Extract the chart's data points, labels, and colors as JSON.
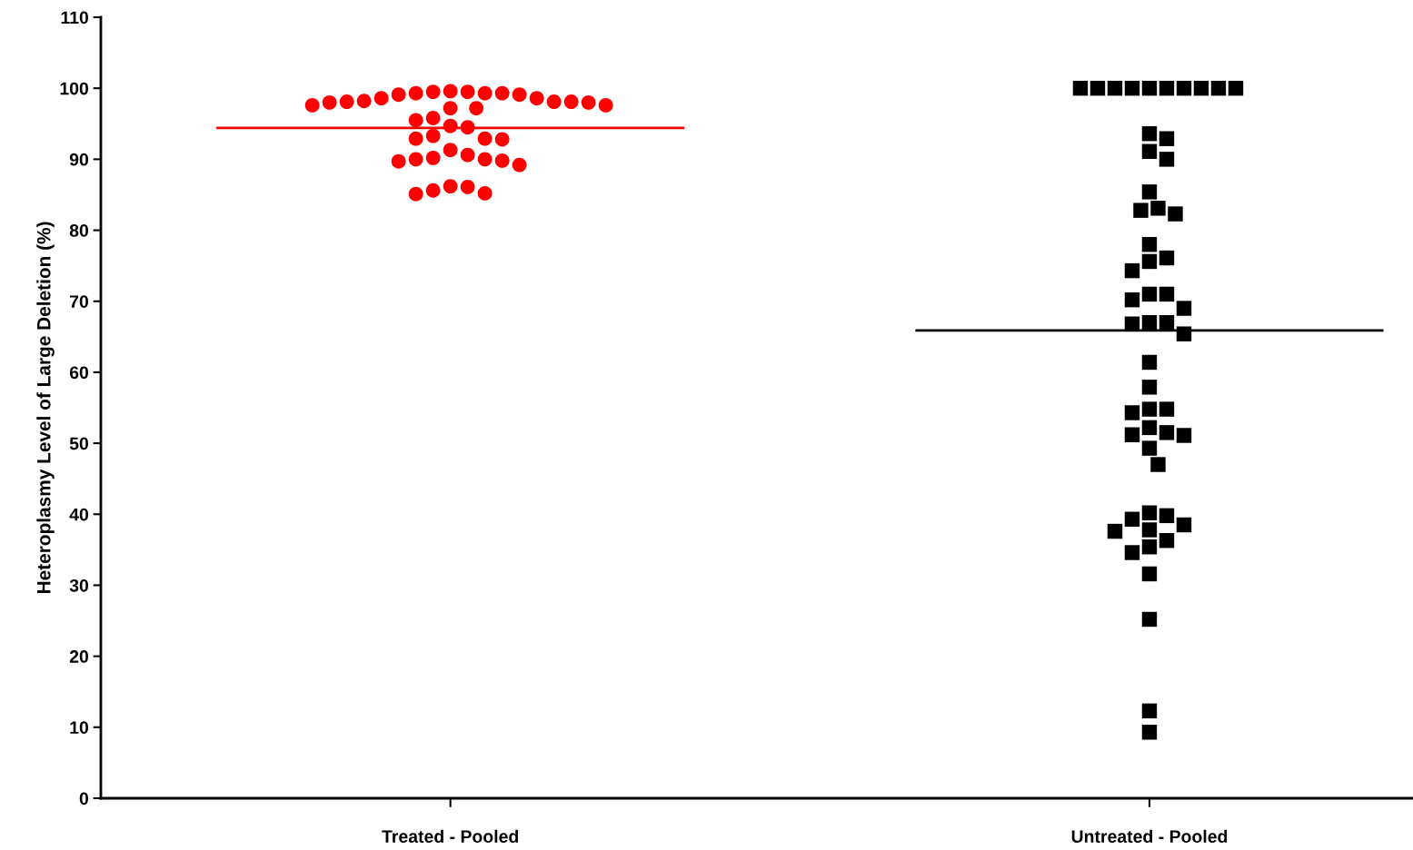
{
  "chart_data": {
    "type": "scatter",
    "ylabel": "Heteroplasmy Level of Large Deletion (%)",
    "categories": [
      "Treated - Pooled",
      "Untreated - Pooled"
    ],
    "ylim": [
      0,
      110
    ],
    "yticks": [
      0,
      10,
      20,
      30,
      40,
      50,
      60,
      70,
      80,
      90,
      100,
      110
    ],
    "ref_lines": [
      {
        "axis": "y",
        "value": 94.4,
        "color": "#ff0000"
      },
      {
        "axis": "y",
        "value": 65.9,
        "color": "#000000"
      }
    ],
    "series": [
      {
        "marker": "circle",
        "color": "#ff0000",
        "x": [
          "Treated - Pooled",
          "Treated - Pooled",
          "Treated - Pooled",
          "Treated - Pooled",
          "Treated - Pooled",
          "Treated - Pooled",
          "Treated - Pooled",
          "Treated - Pooled",
          "Treated - Pooled",
          "Treated - Pooled",
          "Treated - Pooled",
          "Treated - Pooled",
          "Treated - Pooled",
          "Treated - Pooled",
          "Treated - Pooled",
          "Treated - Pooled",
          "Treated - Pooled",
          "Treated - Pooled",
          "Treated - Pooled",
          "Treated - Pooled",
          "Treated - Pooled",
          "Treated - Pooled",
          "Treated - Pooled",
          "Treated - Pooled",
          "Treated - Pooled",
          "Treated - Pooled",
          "Treated - Pooled",
          "Treated - Pooled",
          "Treated - Pooled",
          "Treated - Pooled",
          "Treated - Pooled",
          "Treated - Pooled",
          "Treated - Pooled",
          "Treated - Pooled",
          "Treated - Pooled",
          "Treated - Pooled",
          "Treated - Pooled",
          "Treated - Pooled",
          "Treated - Pooled",
          "Treated - Pooled",
          "Treated - Pooled"
        ],
        "values": [
          99.5,
          99.3,
          99.3,
          99.1,
          98.6,
          98.1,
          98.1,
          98.0,
          98.0,
          98.1,
          98.2,
          98.6,
          99.1,
          99.3,
          99.5,
          99.6,
          97.6,
          97.2,
          97.2,
          97.6,
          95.8,
          95.5,
          94.5,
          94.7,
          92.9,
          92.8,
          92.9,
          93.3,
          91.3,
          90.2,
          90.0,
          89.7,
          89.2,
          89.8,
          90.0,
          90.6,
          86.2,
          85.6,
          85.1,
          85.2,
          86.1
        ]
      },
      {
        "marker": "square",
        "color": "#000000",
        "x": [
          "Untreated - Pooled",
          "Untreated - Pooled",
          "Untreated - Pooled",
          "Untreated - Pooled",
          "Untreated - Pooled",
          "Untreated - Pooled",
          "Untreated - Pooled",
          "Untreated - Pooled",
          "Untreated - Pooled",
          "Untreated - Pooled",
          "Untreated - Pooled",
          "Untreated - Pooled",
          "Untreated - Pooled",
          "Untreated - Pooled",
          "Untreated - Pooled",
          "Untreated - Pooled",
          "Untreated - Pooled",
          "Untreated - Pooled",
          "Untreated - Pooled",
          "Untreated - Pooled",
          "Untreated - Pooled",
          "Untreated - Pooled",
          "Untreated - Pooled",
          "Untreated - Pooled",
          "Untreated - Pooled",
          "Untreated - Pooled",
          "Untreated - Pooled",
          "Untreated - Pooled",
          "Untreated - Pooled",
          "Untreated - Pooled",
          "Untreated - Pooled",
          "Untreated - Pooled",
          "Untreated - Pooled",
          "Untreated - Pooled",
          "Untreated - Pooled",
          "Untreated - Pooled",
          "Untreated - Pooled",
          "Untreated - Pooled",
          "Untreated - Pooled",
          "Untreated - Pooled",
          "Untreated - Pooled",
          "Untreated - Pooled",
          "Untreated - Pooled",
          "Untreated - Pooled",
          "Untreated - Pooled",
          "Untreated - Pooled",
          "Untreated - Pooled",
          "Untreated - Pooled",
          "Untreated - Pooled",
          "Untreated - Pooled",
          "Untreated - Pooled",
          "Untreated - Pooled",
          "Untreated - Pooled",
          "Untreated - Pooled"
        ],
        "values": [
          100,
          100,
          100,
          100,
          100,
          100,
          100,
          100,
          100,
          100,
          93.6,
          92.9,
          91.1,
          90.0,
          85.4,
          82.8,
          82.3,
          83.1,
          78.0,
          75.6,
          74.3,
          76.1,
          71.0,
          69.0,
          70.2,
          71.0,
          67.0,
          66.8,
          67.0,
          65.4,
          61.4,
          57.9,
          54.8,
          54.3,
          54.8,
          52.2,
          51.1,
          51.2,
          51.5,
          49.3,
          47.0,
          40.2,
          39.8,
          39.3,
          38.5,
          37.8,
          37.6,
          36.3,
          35.4,
          34.6,
          31.6,
          25.2,
          12.3,
          9.3
        ]
      }
    ]
  }
}
